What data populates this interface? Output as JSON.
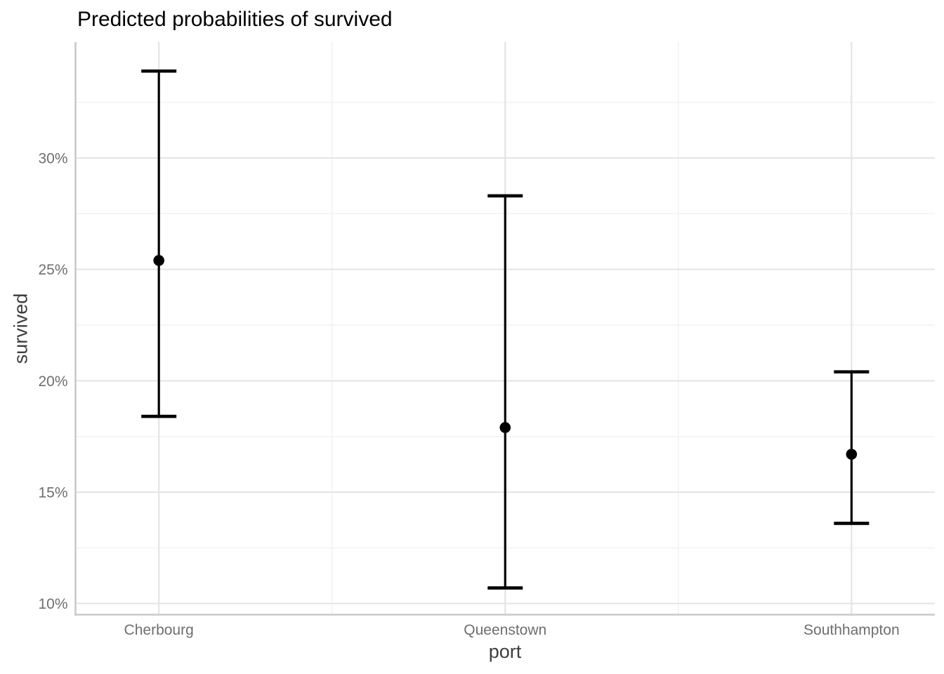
{
  "chart_data": {
    "type": "pointrange",
    "title": "Predicted probabilities of survived",
    "xlabel": "port",
    "ylabel": "survived",
    "categories": [
      "Cherbourg",
      "Queenstown",
      "Southhampton"
    ],
    "series": [
      {
        "name": "predicted_probability_with_ci",
        "points": [
          {
            "category": "Cherbourg",
            "estimate_pct": 25.4,
            "ci_low_pct": 18.4,
            "ci_high_pct": 33.9
          },
          {
            "category": "Queenstown",
            "estimate_pct": 17.9,
            "ci_low_pct": 10.7,
            "ci_high_pct": 28.3
          },
          {
            "category": "Southhampton",
            "estimate_pct": 16.7,
            "ci_low_pct": 13.6,
            "ci_high_pct": 20.4
          }
        ]
      }
    ],
    "y_axis": {
      "ylim_pct": [
        9.5,
        35.2
      ],
      "major_ticks": [
        {
          "value": 10,
          "label": "10%"
        },
        {
          "value": 15,
          "label": "15%"
        },
        {
          "value": 20,
          "label": "20%"
        },
        {
          "value": 25,
          "label": "25%"
        },
        {
          "value": 30,
          "label": "30%"
        }
      ],
      "minor_ticks": [
        12.5,
        17.5,
        22.5,
        27.5,
        32.5
      ]
    },
    "grid": "major+minor",
    "legend": "none",
    "style": {
      "point_color": "#000000",
      "errorbar_color": "#000000",
      "grid_major_color": "#e4e4e4",
      "grid_minor_color": "#f1f1f1",
      "axis_line_color": "#c9c9c9",
      "tick_label_color": "#6e6e6e",
      "axis_title_color": "#3d3d3d",
      "title_color": "#000000",
      "background_color": "#ffffff"
    }
  }
}
